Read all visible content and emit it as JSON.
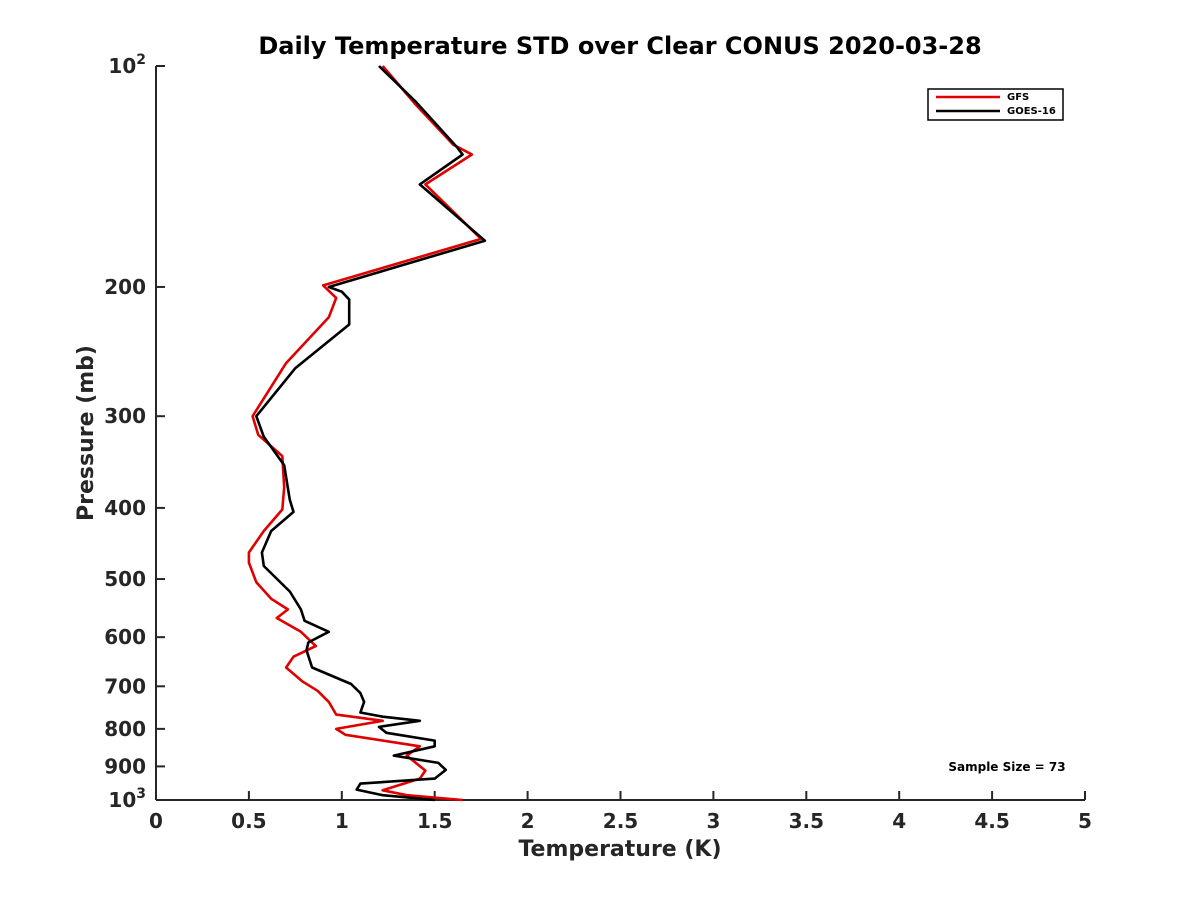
{
  "chart_data": {
    "type": "line",
    "title": "Daily Temperature STD over Clear CONUS 2020-03-28",
    "xlabel": "Temperature (K)",
    "ylabel": "Pressure (mb)",
    "xlim": [
      0,
      5
    ],
    "ylim": [
      100,
      1000
    ],
    "yscale": "log",
    "y_reversed": true,
    "x_ticks": [
      "0",
      "0.5",
      "1",
      "1.5",
      "2",
      "2.5",
      "3",
      "3.5",
      "4",
      "4.5",
      "5"
    ],
    "y_ticks": [
      {
        "value": 100,
        "base": "10",
        "exp": "2"
      },
      {
        "value": 200,
        "label": "200"
      },
      {
        "value": 300,
        "label": "300"
      },
      {
        "value": 400,
        "label": "400"
      },
      {
        "value": 500,
        "label": "500"
      },
      {
        "value": 600,
        "label": "600"
      },
      {
        "value": 700,
        "label": "700"
      },
      {
        "value": 800,
        "label": "800"
      },
      {
        "value": 900,
        "label": "900"
      },
      {
        "value": 1000,
        "base": "10",
        "exp": "3"
      }
    ],
    "legend_position": "top-right",
    "annotation": "Sample Size = 73",
    "series": [
      {
        "name": "GFS",
        "color": "#e00000",
        "points": [
          [
            1.22,
            100
          ],
          [
            1.4,
            113
          ],
          [
            1.6,
            128
          ],
          [
            1.7,
            132
          ],
          [
            1.45,
            145
          ],
          [
            1.75,
            172
          ],
          [
            0.9,
            199
          ],
          [
            0.97,
            207
          ],
          [
            0.93,
            220
          ],
          [
            0.7,
            254
          ],
          [
            0.52,
            300
          ],
          [
            0.55,
            318
          ],
          [
            0.68,
            340
          ],
          [
            0.69,
            375
          ],
          [
            0.68,
            402
          ],
          [
            0.58,
            430
          ],
          [
            0.5,
            460
          ],
          [
            0.5,
            475
          ],
          [
            0.54,
            505
          ],
          [
            0.62,
            532
          ],
          [
            0.71,
            550
          ],
          [
            0.65,
            565
          ],
          [
            0.78,
            590
          ],
          [
            0.86,
            617
          ],
          [
            0.74,
            638
          ],
          [
            0.7,
            660
          ],
          [
            0.79,
            690
          ],
          [
            0.87,
            710
          ],
          [
            0.93,
            735
          ],
          [
            0.97,
            765
          ],
          [
            1.22,
            780
          ],
          [
            0.97,
            800
          ],
          [
            1.02,
            815
          ],
          [
            1.42,
            845
          ],
          [
            1.35,
            870
          ],
          [
            1.45,
            912
          ],
          [
            1.42,
            935
          ],
          [
            1.22,
            970
          ],
          [
            1.35,
            985
          ],
          [
            1.65,
            1000
          ]
        ]
      },
      {
        "name": "GOES-16",
        "color": "#000000",
        "points": [
          [
            1.2,
            100
          ],
          [
            1.4,
            112
          ],
          [
            1.62,
            129
          ],
          [
            1.65,
            132
          ],
          [
            1.42,
            145
          ],
          [
            1.77,
            173
          ],
          [
            0.93,
            200
          ],
          [
            1.0,
            203
          ],
          [
            1.04,
            208
          ],
          [
            1.04,
            225
          ],
          [
            0.75,
            258
          ],
          [
            0.54,
            300
          ],
          [
            0.58,
            320
          ],
          [
            0.69,
            350
          ],
          [
            0.72,
            390
          ],
          [
            0.74,
            405
          ],
          [
            0.62,
            430
          ],
          [
            0.57,
            460
          ],
          [
            0.58,
            480
          ],
          [
            0.72,
            520
          ],
          [
            0.78,
            550
          ],
          [
            0.8,
            570
          ],
          [
            0.93,
            590
          ],
          [
            0.82,
            610
          ],
          [
            0.81,
            625
          ],
          [
            0.84,
            660
          ],
          [
            1.05,
            695
          ],
          [
            1.1,
            715
          ],
          [
            1.12,
            735
          ],
          [
            1.1,
            760
          ],
          [
            1.22,
            770
          ],
          [
            1.42,
            780
          ],
          [
            1.2,
            795
          ],
          [
            1.24,
            810
          ],
          [
            1.5,
            830
          ],
          [
            1.5,
            845
          ],
          [
            1.28,
            870
          ],
          [
            1.52,
            890
          ],
          [
            1.56,
            910
          ],
          [
            1.5,
            935
          ],
          [
            1.1,
            950
          ],
          [
            1.08,
            968
          ],
          [
            1.22,
            985
          ],
          [
            1.5,
            1000
          ]
        ]
      }
    ]
  }
}
